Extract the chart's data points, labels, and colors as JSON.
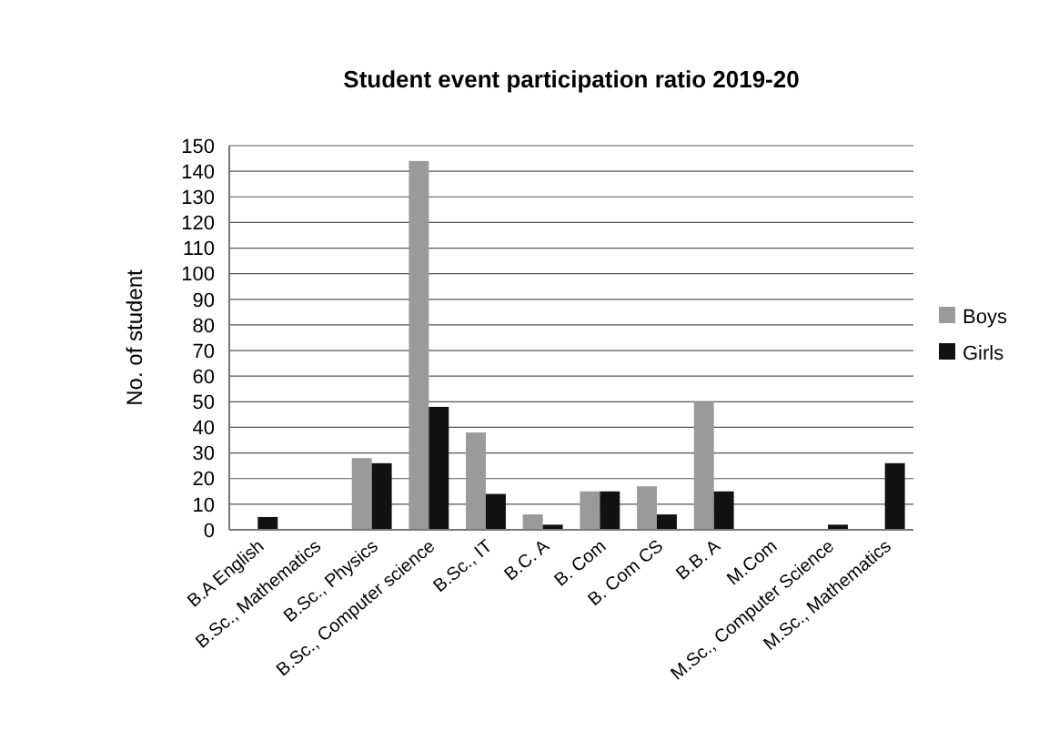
{
  "chart_data": {
    "type": "bar",
    "title": "Student event participation ratio 2019-20",
    "ylabel": "No. of student",
    "categories": [
      "B.A English",
      "B.Sc., Mathematics",
      "B.Sc., Physics",
      "B.Sc., Computer science",
      "B.Sc., IT",
      "B.C. A",
      "B. Com",
      "B. Com CS",
      "B.B. A",
      "M.Com",
      "M.Sc., Computer Science",
      "M.Sc., Mathematics"
    ],
    "series": [
      {
        "name": "Boys",
        "color": "#9a9a9a",
        "values": [
          0,
          0,
          28,
          144,
          38,
          6,
          15,
          17,
          50,
          0,
          0,
          0
        ]
      },
      {
        "name": "Girls",
        "color": "#111111",
        "values": [
          5,
          0,
          26,
          48,
          14,
          2,
          15,
          6,
          15,
          0,
          2,
          26
        ]
      }
    ],
    "ylim": [
      0,
      150
    ],
    "yticks": [
      0,
      10,
      20,
      30,
      40,
      50,
      60,
      70,
      80,
      90,
      100,
      110,
      120,
      130,
      140,
      150
    ],
    "grid": "y",
    "legend": "right"
  }
}
